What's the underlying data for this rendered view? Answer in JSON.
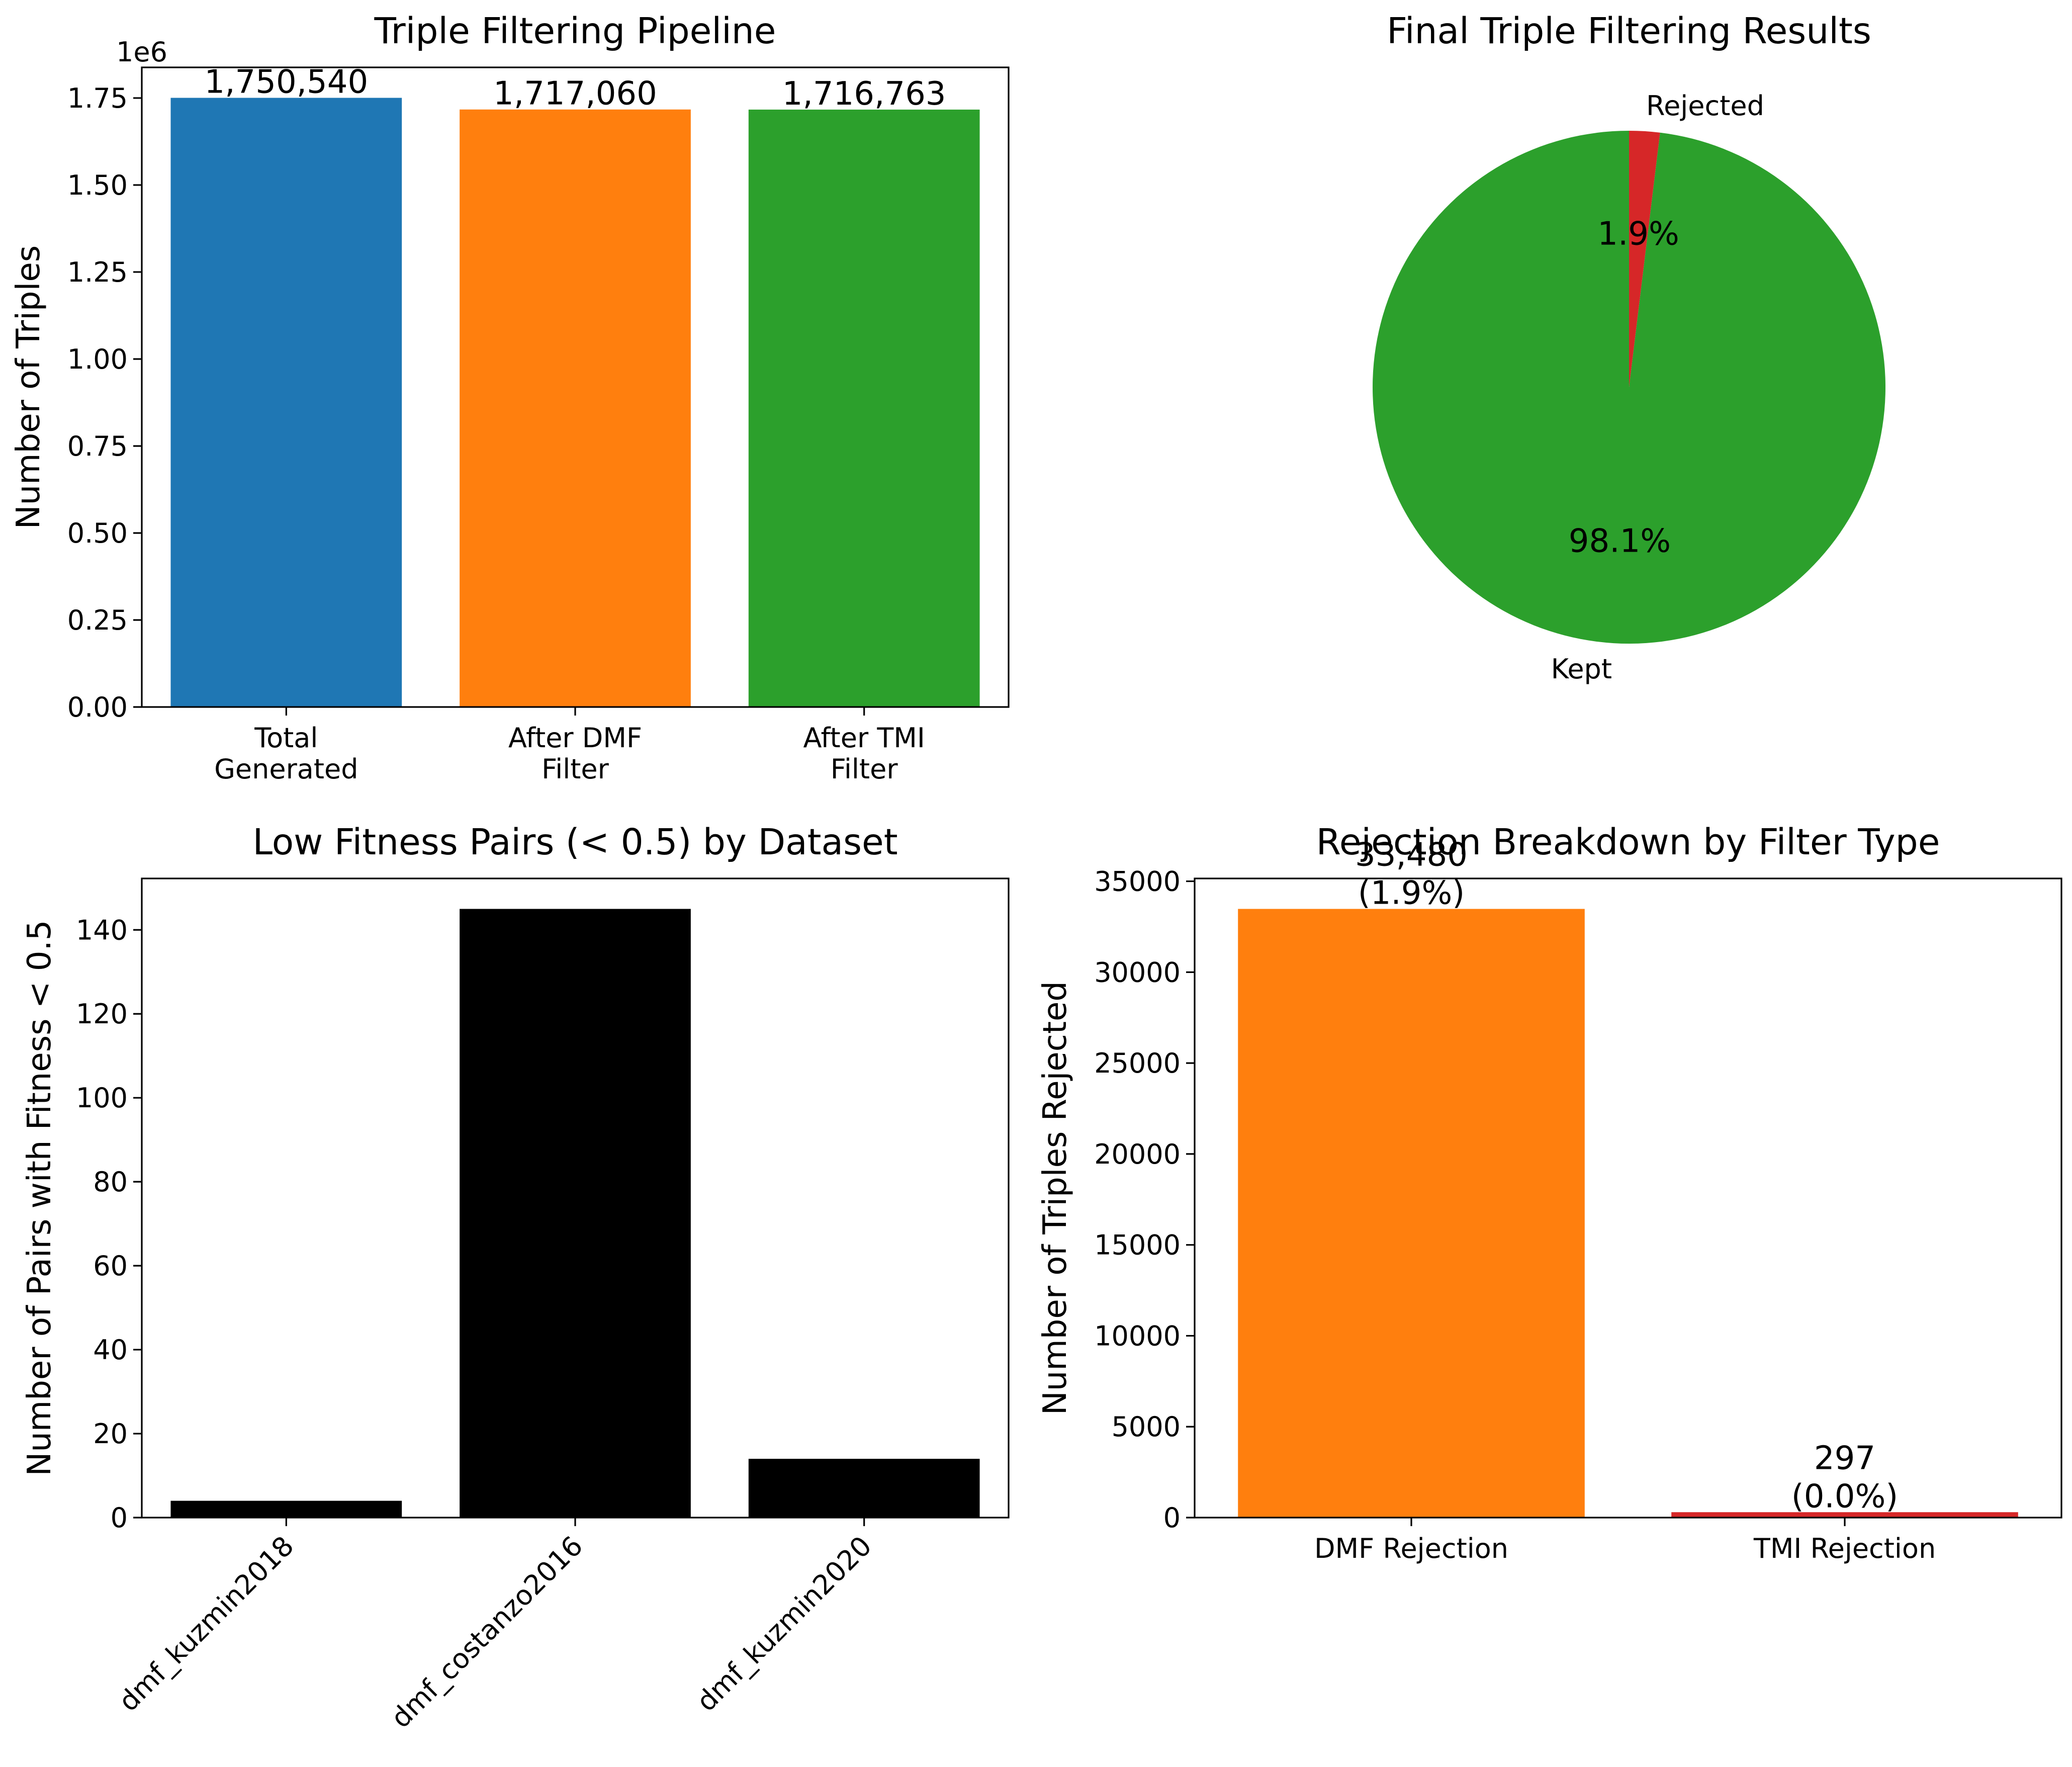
{
  "colors": {
    "blue": "#1f77b4",
    "orange": "#ff7f0e",
    "green": "#2ca02c",
    "red": "#d62728",
    "black": "#000000"
  },
  "chart_data": [
    {
      "type": "bar",
      "title": "Triple Filtering Pipeline",
      "ylabel": "Number of Triples",
      "xlabel": "",
      "offset_text": "1e6",
      "categories": [
        "Total\nGenerated",
        "After DMF\nFilter",
        "After TMI\nFilter"
      ],
      "values": [
        1750540,
        1717060,
        1716763
      ],
      "data_labels": [
        "1,750,540",
        "1,717,060",
        "1,716,763"
      ],
      "colors": [
        "#1f77b4",
        "#ff7f0e",
        "#2ca02c"
      ],
      "ylim": [
        0,
        1838067
      ],
      "yticks": [
        0,
        250000,
        500000,
        750000,
        1000000,
        1250000,
        1500000,
        1750000
      ],
      "ytick_labels": [
        "0.00",
        "0.25",
        "0.50",
        "0.75",
        "1.00",
        "1.25",
        "1.50",
        "1.75"
      ],
      "grid": false
    },
    {
      "type": "pie",
      "title": "Final Triple Filtering Results",
      "labels": [
        "Kept",
        "Rejected"
      ],
      "values": [
        1716763,
        33777
      ],
      "autopct": [
        "98.1%",
        "1.9%"
      ],
      "colors": [
        "#2ca02c",
        "#d62728"
      ]
    },
    {
      "type": "bar",
      "title": "Low Fitness Pairs (< 0.5) by Dataset",
      "ylabel": "Number of Pairs with Fitness < 0.5",
      "xlabel": "",
      "categories": [
        "dmf_kuzmin2018",
        "dmf_costanzo2016",
        "dmf_kuzmin2020"
      ],
      "values": [
        4,
        145,
        14
      ],
      "colors": [
        "#000000",
        "#000000",
        "#000000"
      ],
      "ylim": [
        0,
        152.25
      ],
      "yticks": [
        0,
        20,
        40,
        60,
        80,
        100,
        120,
        140
      ],
      "ytick_labels": [
        "0",
        "20",
        "40",
        "60",
        "80",
        "100",
        "120",
        "140"
      ],
      "xtick_rotation": 45,
      "grid": false
    },
    {
      "type": "bar",
      "title": "Rejection Breakdown by Filter Type",
      "ylabel": "Number of Triples Rejected",
      "xlabel": "",
      "categories": [
        "DMF Rejection",
        "TMI Rejection"
      ],
      "values": [
        33480,
        297
      ],
      "data_labels": [
        "33,480\n(1.9%)",
        "297\n(0.0%)"
      ],
      "colors": [
        "#ff7f0e",
        "#d62728"
      ],
      "ylim": [
        0,
        35154
      ],
      "yticks": [
        0,
        5000,
        10000,
        15000,
        20000,
        25000,
        30000,
        35000
      ],
      "ytick_labels": [
        "0",
        "5000",
        "10000",
        "15000",
        "20000",
        "25000",
        "30000",
        "35000"
      ],
      "grid": false
    }
  ]
}
